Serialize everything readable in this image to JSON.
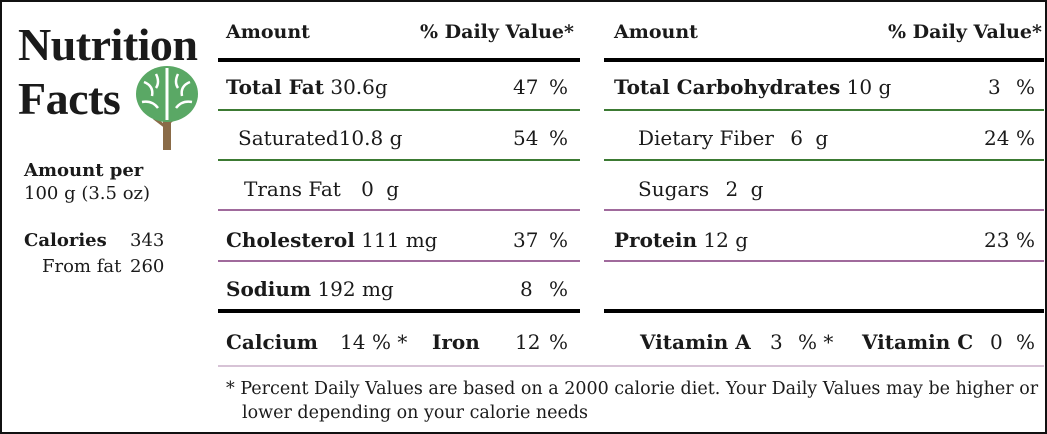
{
  "title": {
    "line1": "Nutrition",
    "line2": "Facts"
  },
  "logo_icon": "brain-tree-logo",
  "colors": {
    "green": "#3c7a33",
    "purple": "#a06a9c",
    "tree_green": "#5aa865",
    "trunk": "#8a6b48"
  },
  "serving": {
    "line1": "Amount per",
    "line2": "100 g (3.5 oz)"
  },
  "calories": {
    "label": "Calories",
    "value": "343",
    "from_fat_label": "From fat",
    "from_fat_value": "260"
  },
  "left_header": {
    "amount": "Amount",
    "dv": "% Daily Value*"
  },
  "right_header": {
    "amount": "Amount",
    "dv": "% Daily Value*"
  },
  "left_rows": [
    {
      "name": "Total Fat",
      "value": "30.6g",
      "pct": "47",
      "unit": "%"
    },
    {
      "name": "Saturated",
      "value": "10.8 g",
      "pct": "54",
      "unit": "%"
    },
    {
      "name": "Trans Fat",
      "value": "0",
      "unit_g": "g"
    },
    {
      "name": "Cholesterol",
      "value": "111 mg",
      "pct": "37",
      "unit": "%"
    },
    {
      "name": "Sodium",
      "value": "192 mg",
      "pct": "8",
      "unit": "%"
    }
  ],
  "right_rows": [
    {
      "name": "Total Carbohydrates",
      "value": "10 g",
      "pct": "3",
      "unit": "%"
    },
    {
      "name": "Dietary Fiber",
      "value": "6",
      "unit_g": "g",
      "pct": "24",
      "unit": "%"
    },
    {
      "name": "Sugars",
      "value": "2",
      "unit_g": "g"
    },
    {
      "name": "Protein",
      "value": "12 g",
      "pct": "23",
      "unit": "%"
    }
  ],
  "minerals": {
    "calcium": {
      "label": "Calcium",
      "pct": "14",
      "unit": "% *"
    },
    "iron": {
      "label": "Iron",
      "pct": "12",
      "unit": "%"
    },
    "vitamin_a": {
      "label": "Vitamin A",
      "pct": "3",
      "unit": "% *"
    },
    "vitamin_c": {
      "label": "Vitamin C",
      "pct": "0",
      "unit": "%"
    }
  },
  "footnote": {
    "line1": "* Percent Daily Values are based on a 2000 calorie diet. Your Daily Values may be higher or",
    "line2": "lower depending on your calorie needs"
  }
}
